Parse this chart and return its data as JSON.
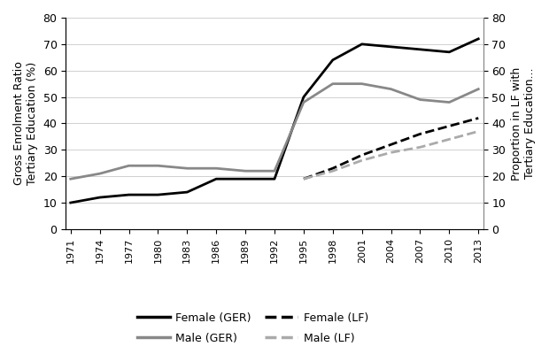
{
  "years": [
    1971,
    1974,
    1977,
    1980,
    1983,
    1986,
    1989,
    1992,
    1995,
    1998,
    2001,
    2004,
    2007,
    2010,
    2013
  ],
  "female_GER": [
    10,
    12,
    13,
    13,
    14,
    19,
    19,
    19,
    50,
    64,
    70,
    69,
    68,
    67,
    72
  ],
  "male_GER": [
    19,
    21,
    24,
    24,
    23,
    23,
    22,
    22,
    48,
    55,
    55,
    53,
    49,
    48,
    53
  ],
  "female_LF": [
    null,
    null,
    null,
    null,
    null,
    null,
    null,
    null,
    19,
    23,
    28,
    32,
    36,
    39,
    42
  ],
  "male_LF": [
    null,
    null,
    null,
    null,
    null,
    null,
    null,
    null,
    19,
    22,
    26,
    29,
    31,
    34,
    37
  ],
  "ylabel_left": "Gross Enrolment Ratio\nTertiary Education (%)",
  "ylabel_right": "Proportion in LF with\nTertiary Education...",
  "ylim": [
    0,
    80
  ],
  "color_female_GER": "#000000",
  "color_male_GER": "#888888",
  "color_female_LF": "#000000",
  "color_male_LF": "#aaaaaa",
  "background": "#ffffff",
  "grid_color": "#d0d0d0",
  "legend_entries": [
    "Female (GER)",
    "Male (GER)",
    "Female (LF)",
    "Male (LF)"
  ],
  "lw_solid": 2.0,
  "lw_dashed": 2.0
}
